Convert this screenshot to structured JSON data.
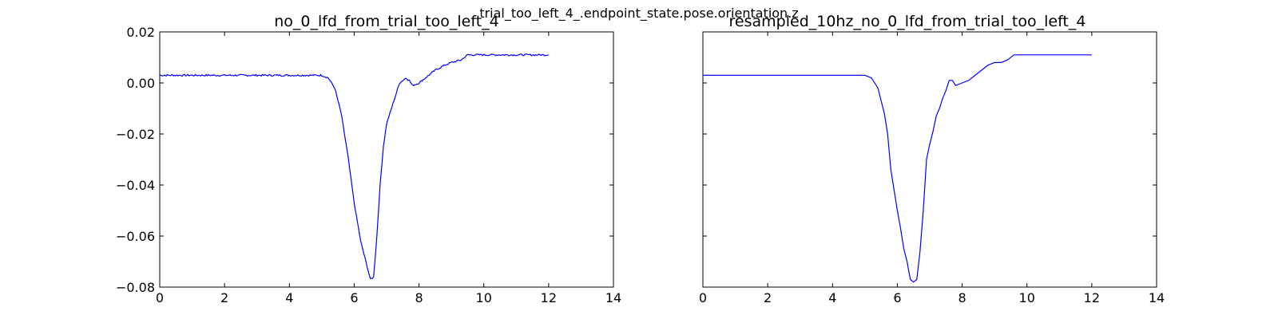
{
  "figure": {
    "suptitle": "trial_too_left_4_.endpoint_state.pose.orientation.z"
  },
  "chart_data": [
    {
      "type": "line",
      "title": "no_0_lfd_from_trial_too_left_4",
      "xlabel": "",
      "ylabel": "",
      "xlim": [
        0,
        14
      ],
      "ylim": [
        -0.08,
        0.02
      ],
      "xticks": [
        0,
        2,
        4,
        6,
        8,
        10,
        12,
        14
      ],
      "xtick_labels": [
        "0",
        "2",
        "4",
        "6",
        "8",
        "10",
        "12",
        "14"
      ],
      "yticks": [
        0.02,
        0.0,
        -0.02,
        -0.04,
        -0.06,
        -0.08
      ],
      "ytick_labels": [
        "0.02",
        "0.00",
        "−0.02",
        "−0.04",
        "−0.06",
        "−0.08"
      ],
      "show_yticklabels": true,
      "grid": false,
      "color": "#0000ff",
      "noise": true,
      "series": [
        {
          "x": [
            0,
            0.5,
            1,
            1.5,
            2,
            2.5,
            3,
            3.5,
            4,
            4.5,
            5,
            5.2,
            5.4,
            5.6,
            5.8,
            6.0,
            6.2,
            6.4,
            6.5,
            6.6,
            6.7,
            6.8,
            6.9,
            7.0,
            7.2,
            7.4,
            7.6,
            7.7,
            7.8,
            8.0,
            8.2,
            8.5,
            8.8,
            9.0,
            9.3,
            9.5,
            9.8,
            10.0,
            10.5,
            11.0,
            11.5,
            12.0
          ],
          "y": [
            0.003,
            0.003,
            0.003,
            0.003,
            0.003,
            0.003,
            0.003,
            0.003,
            0.003,
            0.003,
            0.003,
            0.002,
            -0.002,
            -0.012,
            -0.028,
            -0.047,
            -0.062,
            -0.072,
            -0.077,
            -0.076,
            -0.06,
            -0.04,
            -0.025,
            -0.016,
            -0.008,
            0.0,
            0.002,
            0.001,
            -0.001,
            0.0,
            0.002,
            0.005,
            0.007,
            0.008,
            0.009,
            0.011,
            0.011,
            0.011,
            0.011,
            0.011,
            0.011,
            0.011
          ]
        }
      ]
    },
    {
      "type": "line",
      "title": "resampled_10hz_no_0_lfd_from_trial_too_left_4",
      "xlabel": "",
      "ylabel": "",
      "xlim": [
        0,
        14
      ],
      "ylim": [
        -0.08,
        0.02
      ],
      "xticks": [
        0,
        2,
        4,
        6,
        8,
        10,
        12,
        14
      ],
      "xtick_labels": [
        "0",
        "2",
        "4",
        "6",
        "8",
        "10",
        "12",
        "14"
      ],
      "yticks": [
        0.02,
        0.0,
        -0.02,
        -0.04,
        -0.06,
        -0.08
      ],
      "ytick_labels": [],
      "show_yticklabels": false,
      "grid": false,
      "color": "#0000ff",
      "noise": false,
      "series": [
        {
          "x": [
            0,
            0.3,
            0.6,
            1.0,
            1.5,
            2.0,
            2.5,
            3.0,
            3.5,
            4.0,
            4.5,
            5.0,
            5.2,
            5.4,
            5.5,
            5.6,
            5.7,
            5.8,
            5.9,
            6.0,
            6.1,
            6.2,
            6.3,
            6.4,
            6.5,
            6.6,
            6.7,
            6.8,
            6.9,
            7.0,
            7.1,
            7.2,
            7.3,
            7.4,
            7.5,
            7.6,
            7.7,
            7.8,
            8.0,
            8.2,
            8.4,
            8.6,
            8.8,
            9.0,
            9.2,
            9.4,
            9.6,
            9.8,
            10.0,
            10.2,
            10.5,
            11.0,
            11.5,
            12.0
          ],
          "y": [
            0.003,
            0.003,
            0.003,
            0.003,
            0.003,
            0.003,
            0.003,
            0.003,
            0.003,
            0.003,
            0.003,
            0.003,
            0.002,
            -0.002,
            -0.007,
            -0.012,
            -0.02,
            -0.034,
            -0.042,
            -0.05,
            -0.057,
            -0.065,
            -0.07,
            -0.077,
            -0.078,
            -0.077,
            -0.066,
            -0.05,
            -0.03,
            -0.024,
            -0.019,
            -0.013,
            -0.01,
            -0.006,
            -0.003,
            0.001,
            0.001,
            -0.001,
            0.0,
            0.001,
            0.003,
            0.005,
            0.007,
            0.008,
            0.008,
            0.009,
            0.011,
            0.011,
            0.011,
            0.011,
            0.011,
            0.011,
            0.011,
            0.011
          ]
        }
      ]
    }
  ]
}
